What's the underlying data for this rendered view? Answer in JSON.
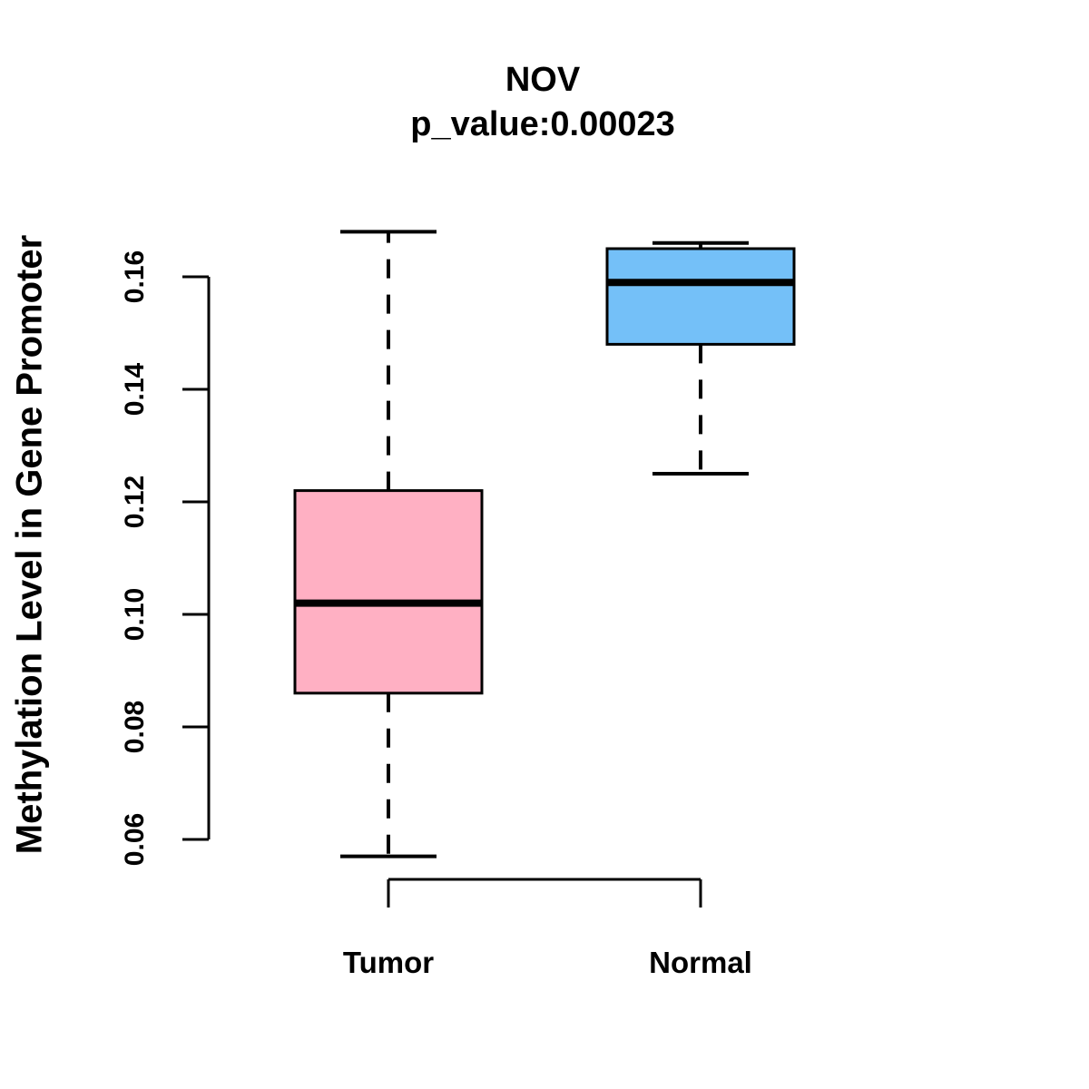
{
  "figure": {
    "title": "NOV",
    "subtitle": "p_value:0.00023",
    "y_axis_label": "Methylation Level in Gene Promoter"
  },
  "chart_data": {
    "type": "boxplot",
    "title": "NOV",
    "subtitle": "p_value:0.00023",
    "ylabel": "Methylation Level in Gene Promoter",
    "xlabel": "",
    "categories": [
      "Tumor",
      "Normal"
    ],
    "series": [
      {
        "name": "Tumor",
        "fill_color": "#ffb0c3",
        "whisker_low": 0.057,
        "q1": 0.086,
        "median": 0.102,
        "q3": 0.122,
        "whisker_high": 0.168
      },
      {
        "name": "Normal",
        "fill_color": "#74c0f8",
        "whisker_low": 0.125,
        "q1": 0.148,
        "median": 0.159,
        "q3": 0.165,
        "whisker_high": 0.166
      }
    ],
    "yticks": [
      0.06,
      0.08,
      0.1,
      0.12,
      0.14,
      0.16
    ],
    "ytick_labels": [
      "0.06",
      "0.08",
      "0.10",
      "0.12",
      "0.14",
      "0.16"
    ],
    "ylim_ticks": [
      0.06,
      0.16
    ],
    "grid": false,
    "legend": "none",
    "box_border_color": "#000000",
    "median_color": "#000000",
    "whisker_style": "dashed"
  }
}
